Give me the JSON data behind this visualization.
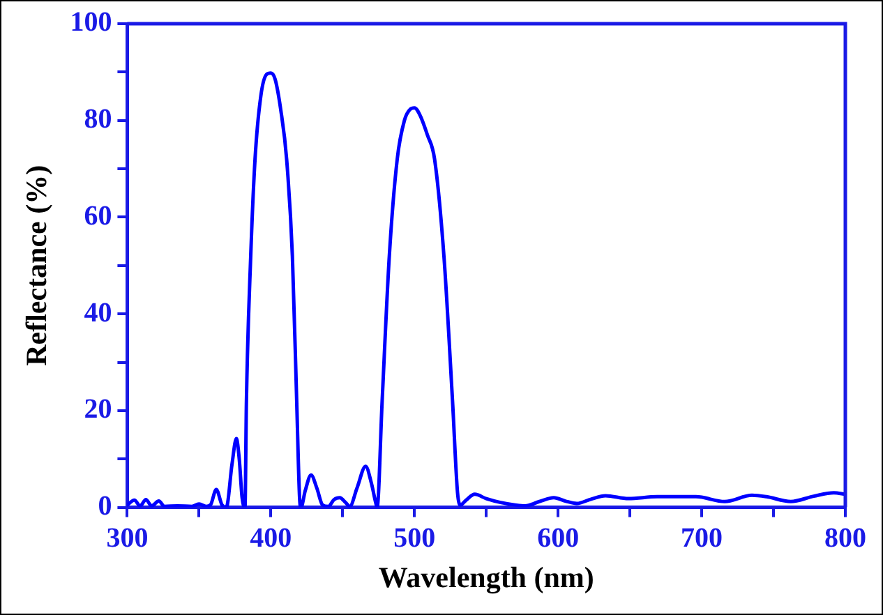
{
  "chart_data": {
    "type": "line",
    "xlabel": "Wavelength (nm)",
    "ylabel": "Reflectance (%)",
    "x": [
      300,
      305,
      309,
      313,
      317,
      322,
      326,
      335,
      345,
      350,
      355,
      358,
      362,
      366,
      369,
      373,
      376,
      378,
      380,
      382,
      383,
      386,
      389,
      393,
      397,
      400,
      403,
      407,
      411,
      415,
      418,
      420,
      421,
      424,
      428,
      432,
      436,
      440,
      444,
      448,
      452,
      455,
      460,
      466,
      470,
      473,
      474,
      477.5,
      482.5,
      488,
      493,
      497,
      500,
      504,
      509,
      514,
      520.5,
      526.5,
      530,
      532,
      536,
      542,
      550,
      560,
      570,
      577,
      587,
      597,
      605,
      613,
      623,
      633,
      649,
      669,
      696,
      716,
      735,
      745,
      762,
      778,
      792,
      800
    ],
    "series": [
      {
        "color": "#0000ff",
        "values": [
          0.5,
          1.5,
          0.3,
          1.6,
          0.3,
          1.3,
          0.2,
          0.3,
          0.2,
          0.7,
          0.2,
          0.5,
          3.7,
          0.5,
          0,
          9,
          14.2,
          10,
          2,
          0,
          22,
          52,
          72,
          85,
          89.5,
          89.8,
          88.5,
          82,
          72,
          52,
          22,
          2,
          0,
          3.5,
          6.7,
          4,
          0.5,
          0.2,
          1.6,
          2,
          1,
          0.2,
          4,
          8.5,
          5,
          1,
          0,
          22,
          52,
          72,
          80,
          82.3,
          82.6,
          81,
          77,
          72,
          52,
          22,
          3,
          0.5,
          1.5,
          2.7,
          1.8,
          1,
          0.5,
          0.3,
          1.2,
          2,
          1.3,
          0.8,
          1.7,
          2.4,
          1.8,
          2.2,
          2.2,
          1.2,
          2.5,
          2.2,
          1.2,
          2.3,
          3,
          2.7
        ]
      }
    ],
    "xlim": [
      300,
      800
    ],
    "xticks": [
      300,
      {
        "value": 350,
        "label": null
      },
      400,
      {
        "value": 450,
        "label": null
      },
      500,
      {
        "value": 550,
        "label": null
      },
      600,
      {
        "value": 650,
        "label": null
      },
      700,
      {
        "value": 750,
        "label": null
      },
      800
    ],
    "ylim": [
      0,
      100
    ],
    "yticks": [
      0,
      {
        "value": 10,
        "label": null
      },
      20,
      {
        "value": 30,
        "label": null
      },
      40,
      {
        "value": 50,
        "label": null
      },
      60,
      {
        "value": 70,
        "label": null
      },
      80,
      {
        "value": 90,
        "label": null
      },
      100
    ],
    "grid": false,
    "legend": false,
    "marker": "none",
    "line_style": "solid"
  }
}
